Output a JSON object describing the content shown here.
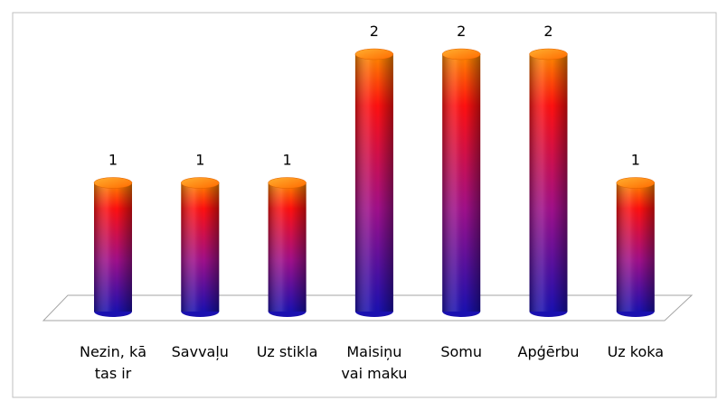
{
  "chart_data": {
    "type": "bar3d",
    "categories": [
      "Nezin, kā tas ir",
      "Savvaļu",
      "Uz stikla",
      "Maisiņu vai maku",
      "Somu",
      "Apģērbu",
      "Uz koka"
    ],
    "values": [
      1,
      1,
      1,
      2,
      2,
      2,
      1
    ]
  }
}
